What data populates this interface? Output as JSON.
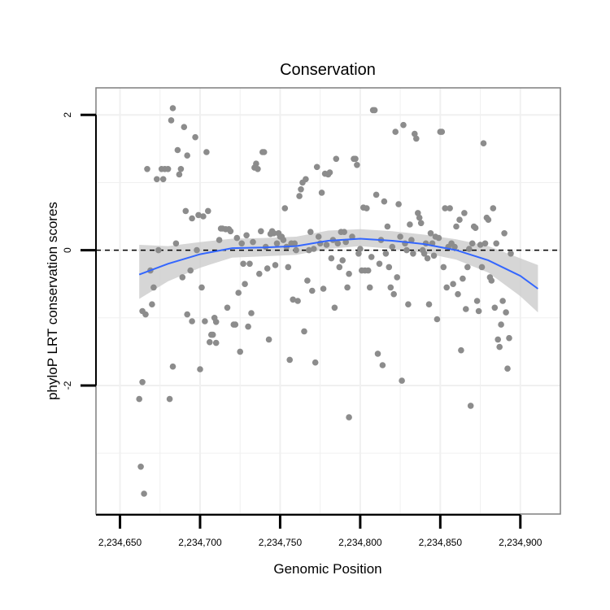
{
  "chart_data": {
    "type": "scatter",
    "title": "Conservation",
    "xlabel": "Genomic Position",
    "ylabel": "phyloP LRT conservation scores",
    "xlim": [
      2234635,
      2234925
    ],
    "ylim": [
      -3.9,
      2.4
    ],
    "grid": true,
    "x_ticks": [
      2234650,
      2234700,
      2234750,
      2234800,
      2234850,
      2234900
    ],
    "x_tick_labels": [
      "2,234,650",
      "2,234,700",
      "2,234,750",
      "2,234,800",
      "2,234,850",
      "2,234,900"
    ],
    "y_ticks": [
      -2,
      0,
      2
    ],
    "y_tick_labels": [
      "-2",
      "0",
      "2"
    ],
    "reference_line": {
      "y": 0,
      "style": "dashed"
    },
    "smooth": {
      "x": [
        2234662,
        2234680,
        2234700,
        2234720,
        2234740,
        2234760,
        2234780,
        2234800,
        2234820,
        2234840,
        2234860,
        2234880,
        2234900,
        2234911
      ],
      "y": [
        -0.36,
        -0.2,
        -0.06,
        0.03,
        0.04,
        0.06,
        0.14,
        0.17,
        0.14,
        0.09,
        0.0,
        -0.15,
        -0.38,
        -0.57
      ],
      "lower": [
        -0.72,
        -0.46,
        -0.26,
        -0.11,
        -0.09,
        -0.07,
        0.02,
        0.06,
        0.02,
        -0.04,
        -0.14,
        -0.33,
        -0.68,
        -0.92
      ],
      "upper": [
        0.08,
        0.06,
        0.12,
        0.17,
        0.18,
        0.2,
        0.29,
        0.31,
        0.28,
        0.23,
        0.16,
        0.06,
        -0.12,
        -0.22
      ]
    },
    "points": [
      [
        2234662,
        -2.2
      ],
      [
        2234663,
        -3.2
      ],
      [
        2234664,
        -1.95
      ],
      [
        2234665,
        -3.6
      ],
      [
        2234664,
        -0.9
      ],
      [
        2234666,
        -0.95
      ],
      [
        2234667,
        1.2
      ],
      [
        2234669,
        -0.3
      ],
      [
        2234671,
        -0.55
      ],
      [
        2234670,
        -0.8
      ],
      [
        2234673,
        1.05
      ],
      [
        2234674,
        0.0
      ],
      [
        2234676,
        1.2
      ],
      [
        2234678,
        1.2
      ],
      [
        2234677,
        1.05
      ],
      [
        2234680,
        1.2
      ],
      [
        2234681,
        -2.2
      ],
      [
        2234682,
        1.92
      ],
      [
        2234683,
        2.1
      ],
      [
        2234683,
        -1.72
      ],
      [
        2234685,
        0.1
      ],
      [
        2234686,
        1.48
      ],
      [
        2234687,
        1.12
      ],
      [
        2234688,
        1.2
      ],
      [
        2234689,
        -0.4
      ],
      [
        2234690,
        1.82
      ],
      [
        2234691,
        0.58
      ],
      [
        2234692,
        1.4
      ],
      [
        2234692,
        -0.95
      ],
      [
        2234694,
        -0.3
      ],
      [
        2234695,
        0.47
      ],
      [
        2234695,
        -1.05
      ],
      [
        2234697,
        1.67
      ],
      [
        2234698,
        0.0
      ],
      [
        2234699,
        0.52
      ],
      [
        2234700,
        -1.76
      ],
      [
        2234701,
        -0.55
      ],
      [
        2234702,
        0.5
      ],
      [
        2234703,
        -1.05
      ],
      [
        2234704,
        1.45
      ],
      [
        2234705,
        0.58
      ],
      [
        2234706,
        -1.36
      ],
      [
        2234707,
        -1.25
      ],
      [
        2234708,
        -1.25
      ],
      [
        2234709,
        -1.0
      ],
      [
        2234710,
        -1.06
      ],
      [
        2234710,
        -1.37
      ],
      [
        2234712,
        0.15
      ],
      [
        2234713,
        0.32
      ],
      [
        2234714,
        0.32
      ],
      [
        2234716,
        0.31
      ],
      [
        2234717,
        -0.85
      ],
      [
        2234718,
        0.31
      ],
      [
        2234719,
        0.28
      ],
      [
        2234721,
        -1.1
      ],
      [
        2234722,
        -1.1
      ],
      [
        2234723,
        0.18
      ],
      [
        2234724,
        -0.63
      ],
      [
        2234725,
        -1.5
      ],
      [
        2234726,
        0.1
      ],
      [
        2234727,
        -0.2
      ],
      [
        2234728,
        -0.5
      ],
      [
        2234729,
        0.22
      ],
      [
        2234730,
        -1.13
      ],
      [
        2234731,
        -0.2
      ],
      [
        2234732,
        -0.93
      ],
      [
        2234733,
        0.12
      ],
      [
        2234734,
        1.22
      ],
      [
        2234735,
        1.28
      ],
      [
        2234736,
        1.2
      ],
      [
        2234737,
        -0.35
      ],
      [
        2234738,
        0.28
      ],
      [
        2234739,
        1.45
      ],
      [
        2234740,
        1.45
      ],
      [
        2234741,
        0.05
      ],
      [
        2234742,
        -0.27
      ],
      [
        2234743,
        -1.32
      ],
      [
        2234744,
        0.24
      ],
      [
        2234745,
        0.28
      ],
      [
        2234746,
        0.25
      ],
      [
        2234747,
        -0.22
      ],
      [
        2234748,
        0.1
      ],
      [
        2234749,
        0.25
      ],
      [
        2234750,
        0.2
      ],
      [
        2234751,
        0.2
      ],
      [
        2234752,
        0.15
      ],
      [
        2234753,
        0.62
      ],
      [
        2234754,
        0.05
      ],
      [
        2234755,
        -0.25
      ],
      [
        2234756,
        -1.62
      ],
      [
        2234757,
        0.1
      ],
      [
        2234758,
        -0.73
      ],
      [
        2234759,
        0.1
      ],
      [
        2234760,
        0.0
      ],
      [
        2234761,
        -0.75
      ],
      [
        2234762,
        0.8
      ],
      [
        2234763,
        0.9
      ],
      [
        2234764,
        1.0
      ],
      [
        2234765,
        -1.2
      ],
      [
        2234766,
        1.05
      ],
      [
        2234767,
        -0.45
      ],
      [
        2234768,
        0.0
      ],
      [
        2234769,
        0.27
      ],
      [
        2234770,
        -0.6
      ],
      [
        2234771,
        0.02
      ],
      [
        2234772,
        -1.66
      ],
      [
        2234773,
        1.23
      ],
      [
        2234774,
        0.2
      ],
      [
        2234775,
        0.1
      ],
      [
        2234776,
        0.85
      ],
      [
        2234777,
        -0.57
      ],
      [
        2234778,
        1.13
      ],
      [
        2234779,
        0.08
      ],
      [
        2234780,
        1.12
      ],
      [
        2234781,
        1.15
      ],
      [
        2234782,
        -0.12
      ],
      [
        2234783,
        0.15
      ],
      [
        2234784,
        -0.85
      ],
      [
        2234785,
        1.35
      ],
      [
        2234786,
        0.1
      ],
      [
        2234787,
        -0.25
      ],
      [
        2234788,
        0.27
      ],
      [
        2234789,
        -0.15
      ],
      [
        2234790,
        0.27
      ],
      [
        2234791,
        0.12
      ],
      [
        2234792,
        -0.55
      ],
      [
        2234793,
        -0.35
      ],
      [
        2234793,
        -2.47
      ],
      [
        2234795,
        0.2
      ],
      [
        2234796,
        1.35
      ],
      [
        2234797,
        1.35
      ],
      [
        2234798,
        1.26
      ],
      [
        2234799,
        -0.05
      ],
      [
        2234800,
        0.02
      ],
      [
        2234801,
        -0.3
      ],
      [
        2234802,
        0.63
      ],
      [
        2234803,
        -0.3
      ],
      [
        2234804,
        0.62
      ],
      [
        2234805,
        -0.3
      ],
      [
        2234806,
        -0.55
      ],
      [
        2234807,
        -0.1
      ],
      [
        2234808,
        2.07
      ],
      [
        2234809,
        2.07
      ],
      [
        2234810,
        0.82
      ],
      [
        2234811,
        -1.53
      ],
      [
        2234812,
        -0.2
      ],
      [
        2234813,
        0.15
      ],
      [
        2234814,
        -1.7
      ],
      [
        2234815,
        0.72
      ],
      [
        2234816,
        -0.05
      ],
      [
        2234817,
        0.35
      ],
      [
        2234818,
        -0.25
      ],
      [
        2234819,
        -0.55
      ],
      [
        2234820,
        0.05
      ],
      [
        2234821,
        -0.65
      ],
      [
        2234822,
        1.75
      ],
      [
        2234823,
        -0.4
      ],
      [
        2234824,
        0.68
      ],
      [
        2234825,
        0.2
      ],
      [
        2234826,
        -1.93
      ],
      [
        2234827,
        1.85
      ],
      [
        2234828,
        0.1
      ],
      [
        2234829,
        0.0
      ],
      [
        2234830,
        -0.8
      ],
      [
        2234831,
        0.38
      ],
      [
        2234832,
        0.15
      ],
      [
        2234833,
        -0.05
      ],
      [
        2234834,
        1.72
      ],
      [
        2234835,
        1.65
      ],
      [
        2234836,
        0.55
      ],
      [
        2234837,
        0.48
      ],
      [
        2234838,
        0.4
      ],
      [
        2234839,
        0.0
      ],
      [
        2234840,
        -0.05
      ],
      [
        2234841,
        0.1
      ],
      [
        2234842,
        -0.12
      ],
      [
        2234843,
        -0.8
      ],
      [
        2234844,
        0.25
      ],
      [
        2234845,
        0.1
      ],
      [
        2234846,
        -0.08
      ],
      [
        2234847,
        0.2
      ],
      [
        2234848,
        -1.02
      ],
      [
        2234849,
        0.18
      ],
      [
        2234850,
        1.75
      ],
      [
        2234851,
        1.75
      ],
      [
        2234852,
        -0.25
      ],
      [
        2234853,
        0.62
      ],
      [
        2234854,
        -0.55
      ],
      [
        2234855,
        0.05
      ],
      [
        2234856,
        0.62
      ],
      [
        2234857,
        0.1
      ],
      [
        2234858,
        -0.5
      ],
      [
        2234859,
        0.05
      ],
      [
        2234860,
        0.35
      ],
      [
        2234861,
        -0.65
      ],
      [
        2234862,
        0.45
      ],
      [
        2234863,
        -1.48
      ],
      [
        2234864,
        -0.42
      ],
      [
        2234865,
        0.55
      ],
      [
        2234866,
        -0.87
      ],
      [
        2234867,
        -0.25
      ],
      [
        2234868,
        0.02
      ],
      [
        2234869,
        -2.3
      ],
      [
        2234870,
        0.1
      ],
      [
        2234871,
        0.35
      ],
      [
        2234872,
        0.33
      ],
      [
        2234873,
        -0.75
      ],
      [
        2234874,
        -0.9
      ],
      [
        2234875,
        0.08
      ],
      [
        2234876,
        -0.25
      ],
      [
        2234877,
        1.58
      ],
      [
        2234878,
        0.1
      ],
      [
        2234879,
        0.48
      ],
      [
        2234880,
        0.45
      ],
      [
        2234881,
        -0.4
      ],
      [
        2234882,
        -0.45
      ],
      [
        2234883,
        0.62
      ],
      [
        2234884,
        -0.85
      ],
      [
        2234885,
        0.1
      ],
      [
        2234886,
        -1.32
      ],
      [
        2234887,
        -1.43
      ],
      [
        2234888,
        -1.1
      ],
      [
        2234889,
        -0.75
      ],
      [
        2234890,
        0.25
      ],
      [
        2234891,
        -0.92
      ],
      [
        2234892,
        -1.75
      ],
      [
        2234893,
        -1.3
      ],
      [
        2234894,
        -0.05
      ]
    ]
  }
}
